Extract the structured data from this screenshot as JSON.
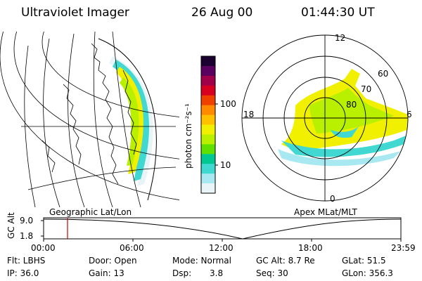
{
  "header": {
    "instrument": "Ultraviolet Imager",
    "date": "26 Aug 00",
    "time": "01:44:30 UT"
  },
  "colorbar": {
    "unit_label": "photon cm⁻²s⁻¹",
    "ticks": [
      "100",
      "10"
    ],
    "colors": [
      "#1a0030",
      "#5a0060",
      "#a0004a",
      "#d80020",
      "#f04000",
      "#ff8a00",
      "#ffc000",
      "#f0f000",
      "#b8f000",
      "#60e000",
      "#00c890",
      "#40d8d0",
      "#a8e8f0",
      "#e8f4f8"
    ]
  },
  "left_panel": {
    "label": "Geographic Lat/Lon"
  },
  "right_panel": {
    "label": "Apex MLat/MLT",
    "mlt_labels": [
      "12",
      "18",
      "6",
      "0"
    ],
    "lat_labels": [
      "60",
      "70",
      "80"
    ]
  },
  "altitude_plot": {
    "ylabel": "GC Alt",
    "yticks": [
      "9.0",
      "1.8"
    ],
    "xticks": [
      "00:00",
      "06:00",
      "12:00",
      "18:00",
      "23:59"
    ]
  },
  "info": {
    "flt": "Flt: LBHS",
    "ip": "IP: 36.0",
    "door": "Door: Open",
    "gain": "Gain: 13",
    "mode": "Mode: Normal",
    "dsp_label": "Dsp:",
    "dsp_value": "3.8",
    "gcalt": "GC Alt: 8.7 Re",
    "seq": "Seq: 30",
    "glat": "GLat: 51.5",
    "glon": "GLon: 356.3"
  }
}
